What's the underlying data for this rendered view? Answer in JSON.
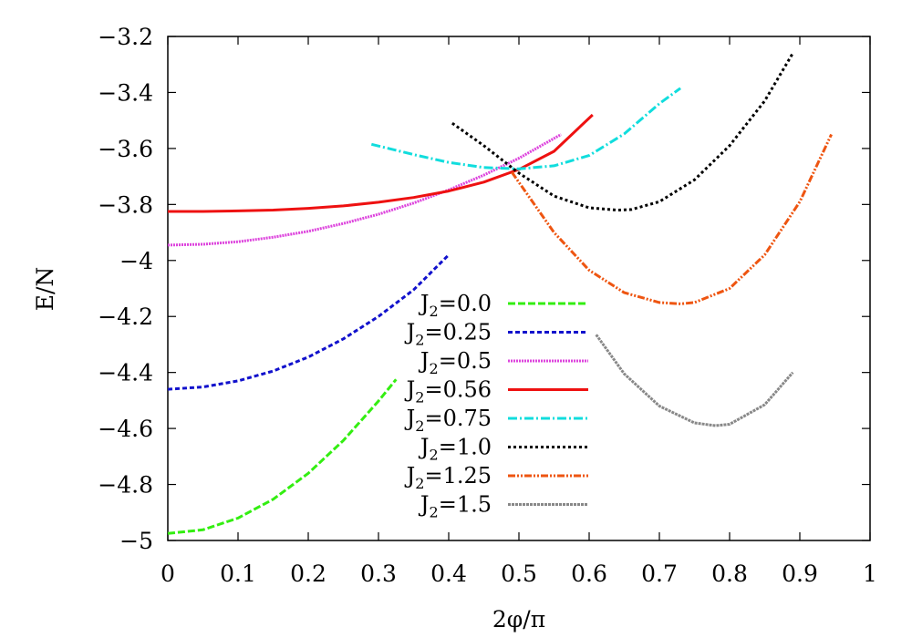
{
  "chart_data": {
    "type": "line",
    "title": "",
    "xlabel": "2φ/π",
    "ylabel": "E/N",
    "xlim": [
      0,
      1
    ],
    "ylim": [
      -5,
      -3.2
    ],
    "xticks": [
      "0",
      "0.1",
      "0.2",
      "0.3",
      "0.4",
      "0.5",
      "0.6",
      "0.7",
      "0.8",
      "0.9",
      "1"
    ],
    "yticks": [
      "-5",
      "-4.8",
      "-4.6",
      "-4.4",
      "-4.2",
      "-4",
      "-3.8",
      "-3.6",
      "-3.4",
      "-3.2"
    ],
    "grid": false,
    "legend_position": "bottom-center",
    "series": [
      {
        "name": "J2=0.0",
        "label_main": "J",
        "label_sub": "2",
        "label_rest": "=0.0",
        "color": "#33ee11",
        "dash": "8,3",
        "x": [
          0.0,
          0.05,
          0.1,
          0.15,
          0.2,
          0.25,
          0.3,
          0.325
        ],
        "y": [
          -4.975,
          -4.962,
          -4.92,
          -4.853,
          -4.76,
          -4.643,
          -4.502,
          -4.425
        ]
      },
      {
        "name": "J2=0.25",
        "label_main": "J",
        "label_sub": "2",
        "label_rest": "=0.25",
        "color": "#1111cc",
        "dash": "5,3",
        "x": [
          0.0,
          0.05,
          0.1,
          0.15,
          0.2,
          0.25,
          0.3,
          0.35,
          0.4
        ],
        "y": [
          -4.46,
          -4.452,
          -4.43,
          -4.395,
          -4.345,
          -4.28,
          -4.2,
          -4.105,
          -3.98
        ]
      },
      {
        "name": "J2=0.5",
        "label_main": "J",
        "label_sub": "2",
        "label_rest": "=0.5",
        "color": "#dd44dd",
        "dash": "2,1",
        "x": [
          0.0,
          0.05,
          0.1,
          0.15,
          0.2,
          0.25,
          0.3,
          0.35,
          0.4,
          0.45,
          0.5,
          0.56
        ],
        "y": [
          -3.945,
          -3.942,
          -3.933,
          -3.917,
          -3.896,
          -3.868,
          -3.835,
          -3.795,
          -3.748,
          -3.695,
          -3.635,
          -3.55
        ]
      },
      {
        "name": "J2=0.56",
        "label_main": "J",
        "label_sub": "2",
        "label_rest": "=0.56",
        "color": "#ee1111",
        "dash": "",
        "x": [
          0.0,
          0.05,
          0.1,
          0.15,
          0.2,
          0.25,
          0.3,
          0.35,
          0.4,
          0.45,
          0.5,
          0.55,
          0.605
        ],
        "y": [
          -3.825,
          -3.825,
          -3.823,
          -3.82,
          -3.814,
          -3.805,
          -3.792,
          -3.775,
          -3.752,
          -3.72,
          -3.675,
          -3.61,
          -3.48
        ]
      },
      {
        "name": "J2=0.75",
        "label_main": "J",
        "label_sub": "2",
        "label_rest": "=0.75",
        "color": "#11dddd",
        "dash": "10,3,2,3",
        "x": [
          0.29,
          0.35,
          0.4,
          0.45,
          0.5,
          0.55,
          0.6,
          0.65,
          0.7,
          0.73
        ],
        "y": [
          -3.585,
          -3.622,
          -3.65,
          -3.668,
          -3.673,
          -3.662,
          -3.625,
          -3.548,
          -3.44,
          -3.385
        ]
      },
      {
        "name": "J2=1.0",
        "label_main": "J",
        "label_sub": "2",
        "label_rest": "=1.0",
        "color": "#000000",
        "dash": "3,3",
        "x": [
          0.405,
          0.45,
          0.5,
          0.55,
          0.6,
          0.64,
          0.66,
          0.7,
          0.75,
          0.8,
          0.85,
          0.89
        ],
        "y": [
          -3.51,
          -3.59,
          -3.688,
          -3.77,
          -3.812,
          -3.82,
          -3.818,
          -3.79,
          -3.712,
          -3.59,
          -3.43,
          -3.26
        ]
      },
      {
        "name": "J2=1.25",
        "label_main": "J",
        "label_sub": "2",
        "label_rest": "=1.25",
        "color": "#ee5511",
        "dash": "8,2,2,2,2,2",
        "x": [
          0.49,
          0.55,
          0.6,
          0.65,
          0.7,
          0.73,
          0.75,
          0.8,
          0.85,
          0.9,
          0.945
        ],
        "y": [
          -3.685,
          -3.9,
          -4.035,
          -4.115,
          -4.15,
          -4.155,
          -4.15,
          -4.1,
          -3.98,
          -3.79,
          -3.55
        ]
      },
      {
        "name": "J2=1.5",
        "label_main": "J",
        "label_sub": "2",
        "label_rest": "=1.5",
        "color": "#888888",
        "dash": "3,1",
        "x": [
          0.61,
          0.65,
          0.7,
          0.75,
          0.78,
          0.8,
          0.85,
          0.89
        ],
        "y": [
          -4.265,
          -4.405,
          -4.52,
          -4.58,
          -4.59,
          -4.585,
          -4.515,
          -4.4
        ]
      }
    ]
  }
}
